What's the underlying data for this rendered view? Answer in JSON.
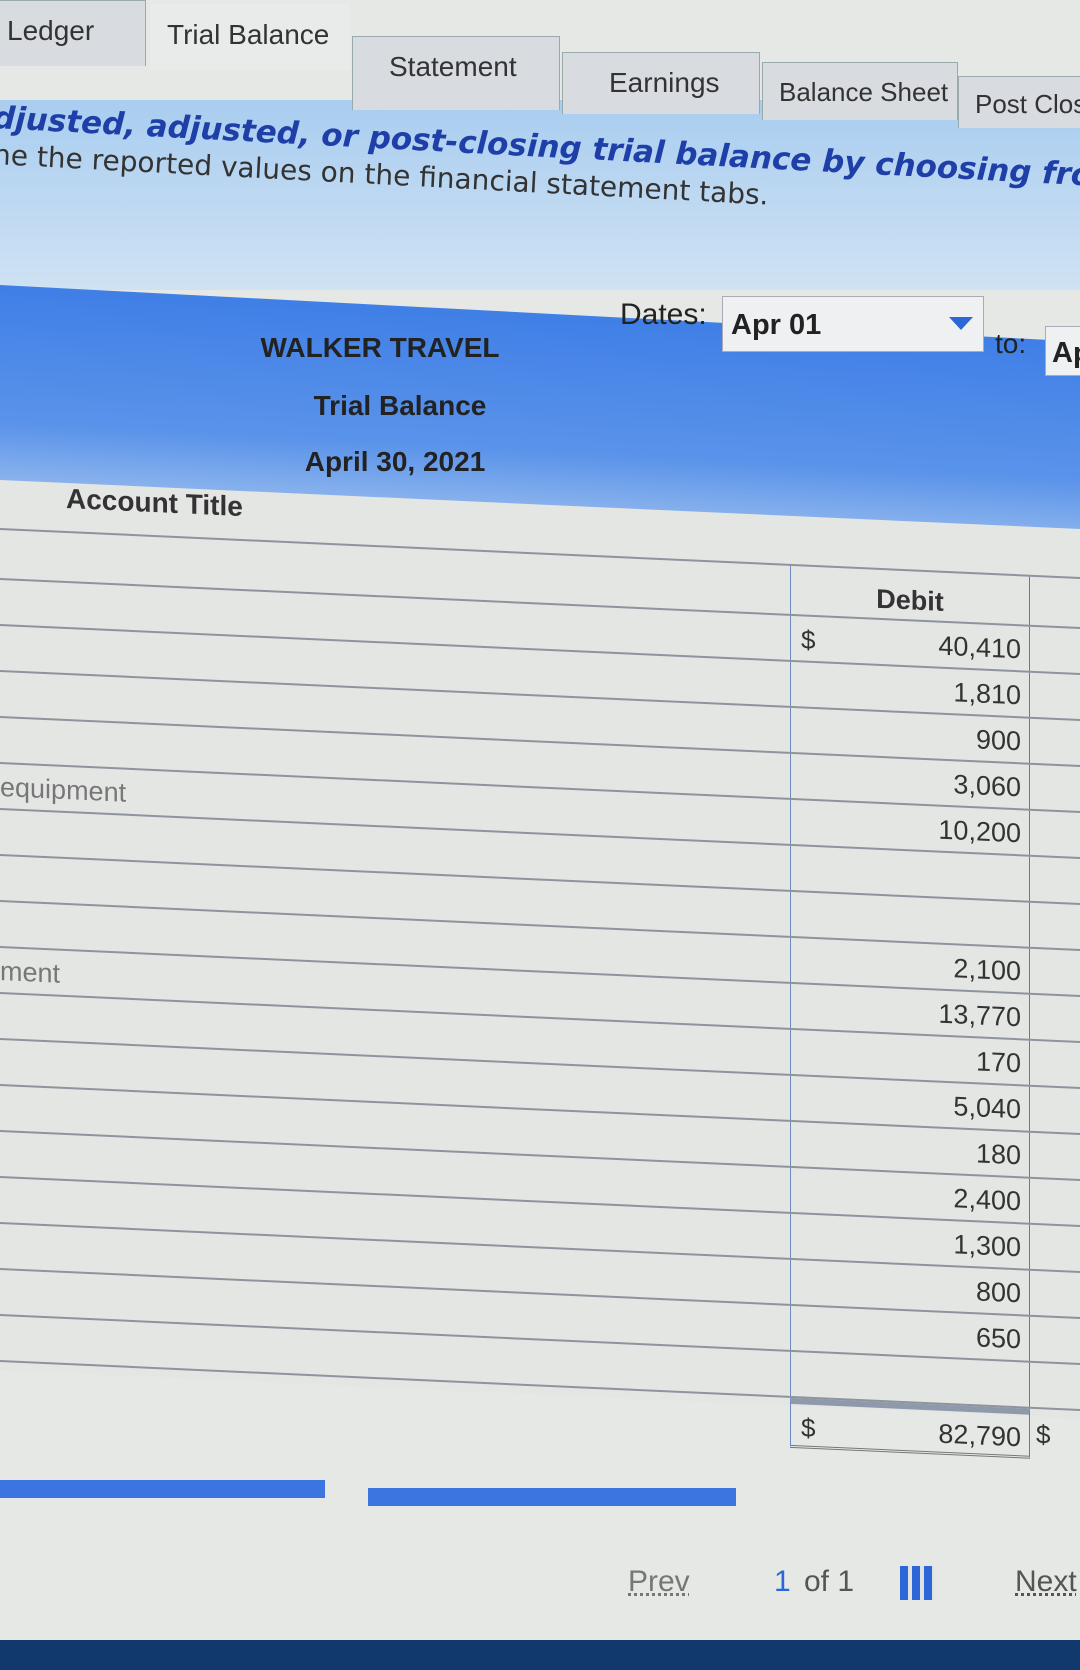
{
  "tabs": [
    "Ledger",
    "Trial Balance",
    "Statement",
    "Earnings",
    "Balance Sheet",
    "Post Clos"
  ],
  "active_tab": "Trial Balance",
  "instructions": {
    "line1": "djusted, adjusted, or post-closing trial balance by choosing from the d",
    "line2": "ne the reported values on the financial statement tabs."
  },
  "dates": {
    "label": "Dates:",
    "from": "Apr 01",
    "to_label": "to:",
    "to": "Ap"
  },
  "report": {
    "company": "WALKER TRAVEL",
    "title": "Trial Balance",
    "date": "April 30, 2021"
  },
  "table": {
    "account_header": "Account Title",
    "debit_header": "Debit",
    "currency": "$",
    "rows": [
      {
        "account": "",
        "debit": "40,410",
        "cur": "$"
      },
      {
        "account": "",
        "debit": "1,810"
      },
      {
        "account": "",
        "debit": "900"
      },
      {
        "account": "",
        "debit": "3,060"
      },
      {
        "account": "equipment",
        "debit": "10,200"
      },
      {
        "account": "",
        "debit": ""
      },
      {
        "account": "",
        "debit": ""
      },
      {
        "account": "",
        "debit": "2,100"
      },
      {
        "account": "ment",
        "debit": "13,770"
      },
      {
        "account": "",
        "debit": "170"
      },
      {
        "account": "",
        "debit": "5,040"
      },
      {
        "account": "",
        "debit": "180"
      },
      {
        "account": "",
        "debit": "2,400"
      },
      {
        "account": "",
        "debit": "1,300"
      },
      {
        "account": "",
        "debit": "800"
      },
      {
        "account": "",
        "debit": "650"
      },
      {
        "account": "",
        "debit": ""
      }
    ],
    "total": {
      "debit": "82,790",
      "cur": "$",
      "credit_cur": "$"
    }
  },
  "pager": {
    "prev": "Prev",
    "current": "1",
    "of": "of 1",
    "next": "Next"
  },
  "colors": {
    "header_blue": "#3f7fe6",
    "link_blue": "#2b67d6"
  }
}
